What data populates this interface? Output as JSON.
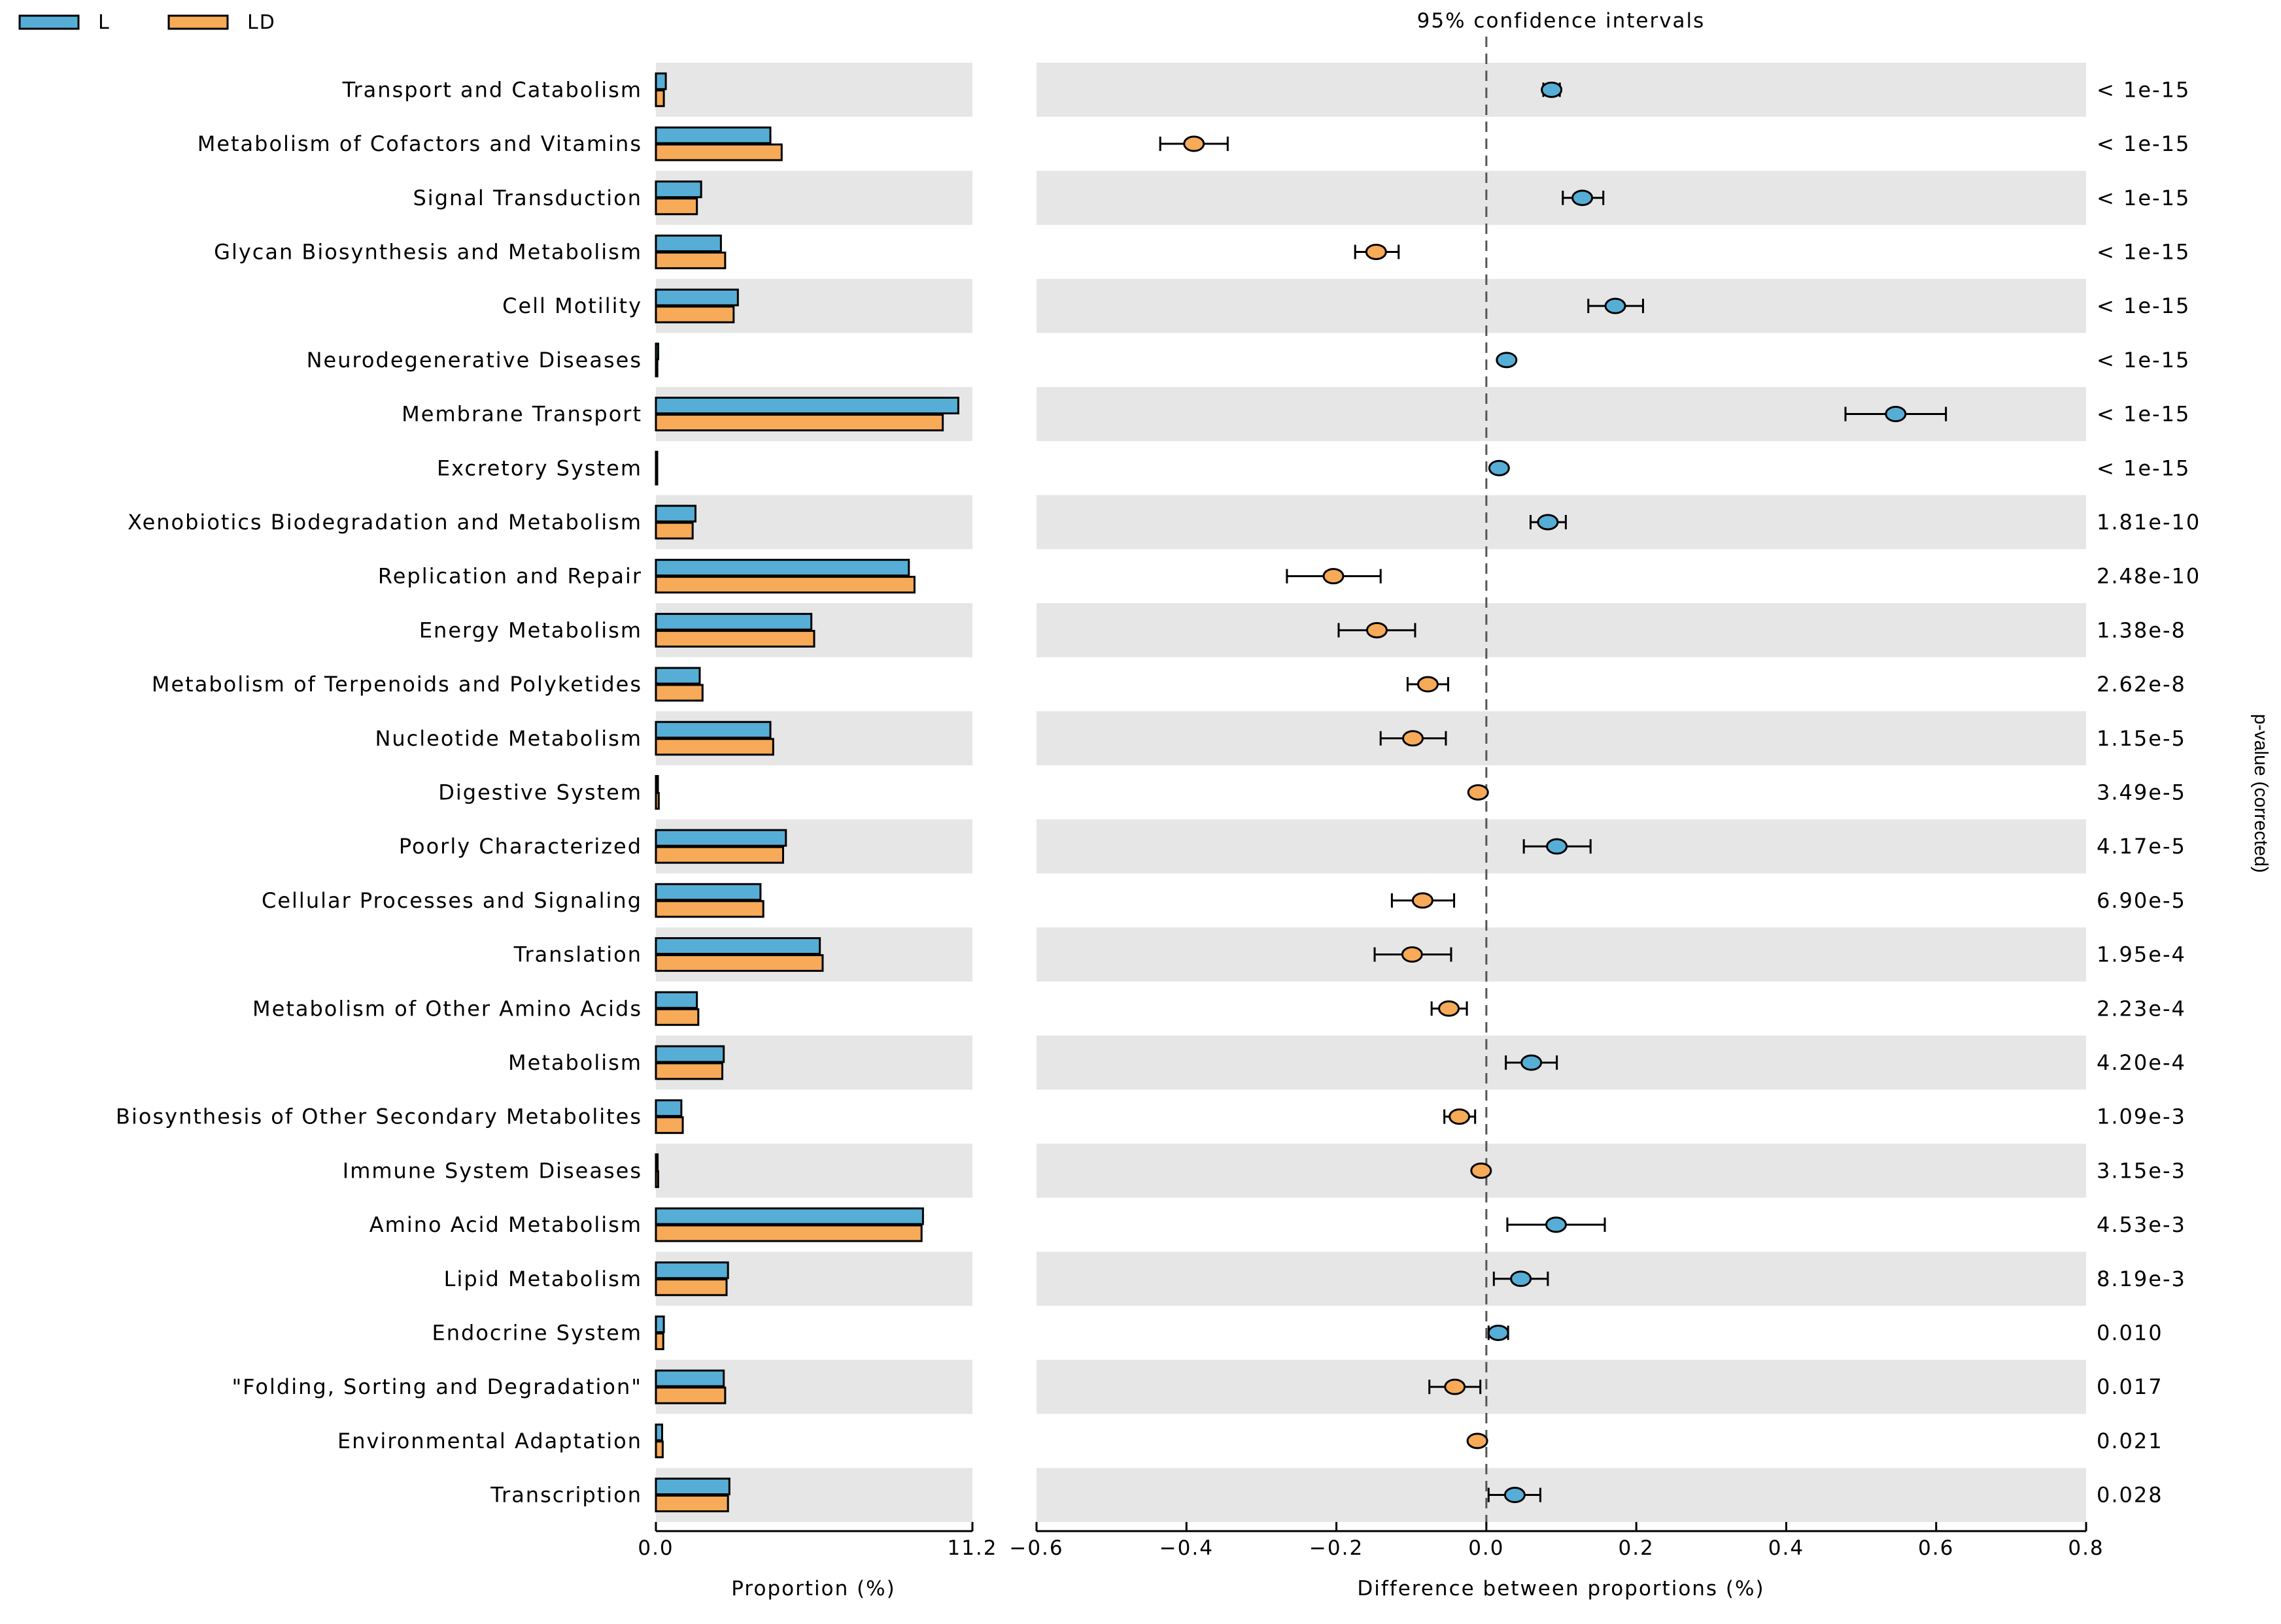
{
  "legend": {
    "groups": [
      {
        "name": "L",
        "color": "#56aed6"
      },
      {
        "name": "LD",
        "color": "#f7aa58"
      }
    ]
  },
  "titles": {
    "ci": "95% confidence intervals",
    "side": "p-value (corrected)"
  },
  "chart_data": [
    {
      "type": "bar",
      "title": "",
      "xlabel": "Proportion (%)",
      "ylabel": "",
      "xlim": [
        0.0,
        11.2
      ],
      "xtick_labels": [
        "0.0",
        "11.2"
      ],
      "orientation": "horizontal",
      "categories": [
        "Transport and Catabolism",
        "Metabolism of Cofactors and Vitamins",
        "Signal Transduction",
        "Glycan Biosynthesis and Metabolism",
        "Cell Motility",
        "Neurodegenerative Diseases",
        "Membrane Transport",
        "Excretory System",
        "Xenobiotics Biodegradation and Metabolism",
        "Replication and Repair",
        "Energy Metabolism",
        "Metabolism of Terpenoids and Polyketides",
        "Nucleotide Metabolism",
        "Digestive System",
        "Poorly Characterized",
        "Cellular Processes and Signaling",
        "Translation",
        "Metabolism of Other Amino Acids",
        "Metabolism",
        "Biosynthesis of Other Secondary Metabolites",
        "Immune System Diseases",
        "Amino Acid Metabolism",
        "Lipid Metabolism",
        "Endocrine System",
        "\"Folding, Sorting and Degradation\"",
        "Environmental Adaptation",
        "Transcription"
      ],
      "series": [
        {
          "name": "L",
          "color": "#56aed6",
          "values": [
            0.35,
            4.05,
            1.6,
            2.3,
            2.9,
            0.08,
            10.7,
            0.04,
            1.4,
            8.95,
            5.5,
            1.55,
            4.05,
            0.07,
            4.6,
            3.7,
            5.8,
            1.45,
            2.4,
            0.9,
            0.06,
            9.45,
            2.55,
            0.28,
            2.4,
            0.22,
            2.6
          ]
        },
        {
          "name": "LD",
          "color": "#f7aa58",
          "values": [
            0.28,
            4.45,
            1.45,
            2.45,
            2.75,
            0.05,
            10.15,
            0.02,
            1.3,
            9.15,
            5.6,
            1.65,
            4.15,
            0.1,
            4.5,
            3.8,
            5.9,
            1.5,
            2.35,
            0.95,
            0.08,
            9.4,
            2.5,
            0.26,
            2.45,
            0.24,
            2.55
          ]
        }
      ]
    },
    {
      "type": "scatter",
      "title": "95% confidence intervals",
      "xlabel": "Difference between proportions (%)",
      "xlim": [
        -0.6,
        0.8
      ],
      "xticks": [
        -0.6,
        -0.4,
        -0.2,
        0.0,
        0.2,
        0.4,
        0.6,
        0.8
      ],
      "xtick_labels": [
        "−0.6",
        "−0.4",
        "−0.2",
        "0.0",
        "0.2",
        "0.4",
        "0.6",
        "0.8"
      ],
      "reference_line": 0.0,
      "points": [
        {
          "diff": 0.087,
          "low": 0.076,
          "high": 0.098,
          "group": "L"
        },
        {
          "diff": -0.39,
          "low": -0.435,
          "high": -0.345,
          "group": "LD"
        },
        {
          "diff": 0.128,
          "low": 0.102,
          "high": 0.156,
          "group": "L"
        },
        {
          "diff": -0.147,
          "low": -0.175,
          "high": -0.117,
          "group": "LD"
        },
        {
          "diff": 0.172,
          "low": 0.136,
          "high": 0.209,
          "group": "L"
        },
        {
          "diff": 0.027,
          "low": 0.024,
          "high": 0.031,
          "group": "L"
        },
        {
          "diff": 0.546,
          "low": 0.479,
          "high": 0.613,
          "group": "L"
        },
        {
          "diff": 0.017,
          "low": 0.015,
          "high": 0.019,
          "group": "L"
        },
        {
          "diff": 0.082,
          "low": 0.059,
          "high": 0.106,
          "group": "L"
        },
        {
          "diff": -0.204,
          "low": -0.266,
          "high": -0.141,
          "group": "LD"
        },
        {
          "diff": -0.146,
          "low": -0.197,
          "high": -0.095,
          "group": "LD"
        },
        {
          "diff": -0.078,
          "low": -0.105,
          "high": -0.051,
          "group": "LD"
        },
        {
          "diff": -0.098,
          "low": -0.141,
          "high": -0.054,
          "group": "LD"
        },
        {
          "diff": -0.011,
          "low": -0.014,
          "high": -0.008,
          "group": "LD"
        },
        {
          "diff": 0.094,
          "low": 0.05,
          "high": 0.139,
          "group": "L"
        },
        {
          "diff": -0.085,
          "low": -0.126,
          "high": -0.043,
          "group": "LD"
        },
        {
          "diff": -0.099,
          "low": -0.149,
          "high": -0.047,
          "group": "LD"
        },
        {
          "diff": -0.05,
          "low": -0.073,
          "high": -0.026,
          "group": "LD"
        },
        {
          "diff": 0.06,
          "low": 0.026,
          "high": 0.094,
          "group": "L"
        },
        {
          "diff": -0.036,
          "low": -0.056,
          "high": -0.015,
          "group": "LD"
        },
        {
          "diff": -0.007,
          "low": -0.009,
          "high": -0.005,
          "group": "LD"
        },
        {
          "diff": 0.093,
          "low": 0.028,
          "high": 0.158,
          "group": "L"
        },
        {
          "diff": 0.046,
          "low": 0.01,
          "high": 0.082,
          "group": "L"
        },
        {
          "diff": 0.016,
          "low": 0.003,
          "high": 0.029,
          "group": "L"
        },
        {
          "diff": -0.042,
          "low": -0.076,
          "high": -0.008,
          "group": "LD"
        },
        {
          "diff": -0.012,
          "low": -0.015,
          "high": -0.009,
          "group": "LD"
        },
        {
          "diff": 0.038,
          "low": 0.003,
          "high": 0.072,
          "group": "L"
        }
      ]
    }
  ],
  "p_values": [
    "< 1e-15",
    "< 1e-15",
    "< 1e-15",
    "< 1e-15",
    "< 1e-15",
    "< 1e-15",
    "< 1e-15",
    "< 1e-15",
    "1.81e-10",
    "2.48e-10",
    "1.38e-8",
    "2.62e-8",
    "1.15e-5",
    "3.49e-5",
    "4.17e-5",
    "6.90e-5",
    "1.95e-4",
    "2.23e-4",
    "4.20e-4",
    "1.09e-3",
    "3.15e-3",
    "4.53e-3",
    "8.19e-3",
    "0.010",
    "0.017",
    "0.021",
    "0.028"
  ],
  "colors": {
    "row_shade": "#e6e6e6",
    "bar_outline": "#000000",
    "L": "#56aed6",
    "LD": "#f7aa58"
  }
}
